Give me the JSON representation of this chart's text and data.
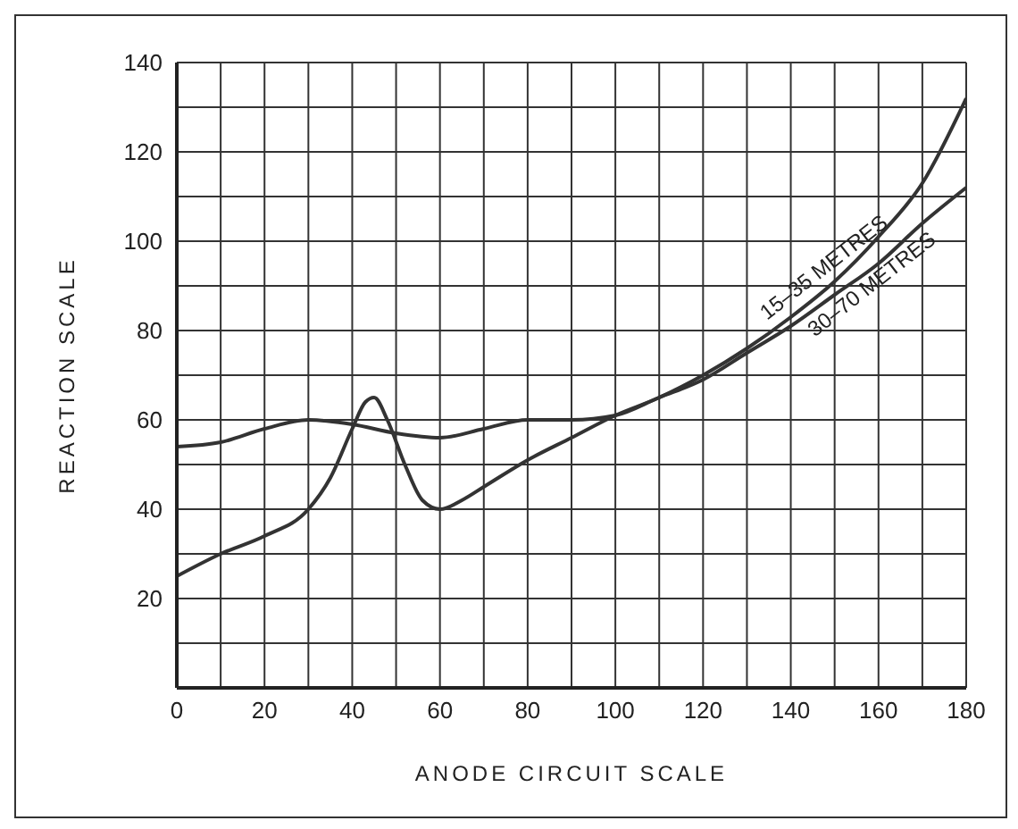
{
  "chart_data": {
    "type": "line",
    "xlabel": "ANODE  CIRCUIT  SCALE",
    "ylabel": "REACTION   SCALE",
    "grid": true,
    "marker": "none",
    "line_style": "solid",
    "xlim": [
      0,
      180
    ],
    "ylim": [
      0,
      140
    ],
    "xticks": [
      0,
      {
        "value": 10,
        "label": null
      },
      20,
      {
        "value": 30,
        "label": null
      },
      40,
      {
        "value": 50,
        "label": null
      },
      60,
      {
        "value": 70,
        "label": null
      },
      80,
      {
        "value": 90,
        "label": null
      },
      100,
      {
        "value": 110,
        "label": null
      },
      120,
      {
        "value": 130,
        "label": null
      },
      140,
      {
        "value": 150,
        "label": null
      },
      160,
      {
        "value": 170,
        "label": null
      },
      180
    ],
    "yticks": [
      {
        "value": 0,
        "label": null
      },
      {
        "value": 10,
        "label": null
      },
      20,
      {
        "value": 30,
        "label": null
      },
      40,
      {
        "value": 50,
        "label": null
      },
      60,
      {
        "value": 70,
        "label": null
      },
      80,
      {
        "value": 90,
        "label": null
      },
      100,
      {
        "value": 110,
        "label": null
      },
      120,
      {
        "value": 130,
        "label": null
      },
      140
    ],
    "series": [
      {
        "name": "15–35 METRES",
        "color": "#333333",
        "x": [
          0,
          10,
          20,
          30,
          35,
          40,
          43,
          45,
          48,
          52,
          56,
          60,
          65,
          70,
          80,
          90,
          100,
          110,
          120,
          130,
          140,
          150,
          160,
          170,
          180
        ],
        "values": [
          25,
          30,
          34,
          40,
          47,
          58,
          64,
          65,
          60,
          50,
          42,
          40,
          42,
          45,
          51,
          56,
          61,
          65,
          70,
          76,
          83,
          91,
          101,
          113,
          132
        ]
      },
      {
        "name": "30–70 METRES",
        "color": "#333333",
        "x": [
          0,
          10,
          20,
          30,
          40,
          50,
          60,
          70,
          80,
          90,
          100,
          110,
          120,
          130,
          140,
          150,
          160,
          170,
          180
        ],
        "values": [
          54,
          55,
          58,
          60,
          59,
          57,
          56,
          58,
          60,
          60,
          61,
          65,
          69,
          75,
          81,
          88,
          95,
          104,
          112
        ]
      }
    ]
  }
}
